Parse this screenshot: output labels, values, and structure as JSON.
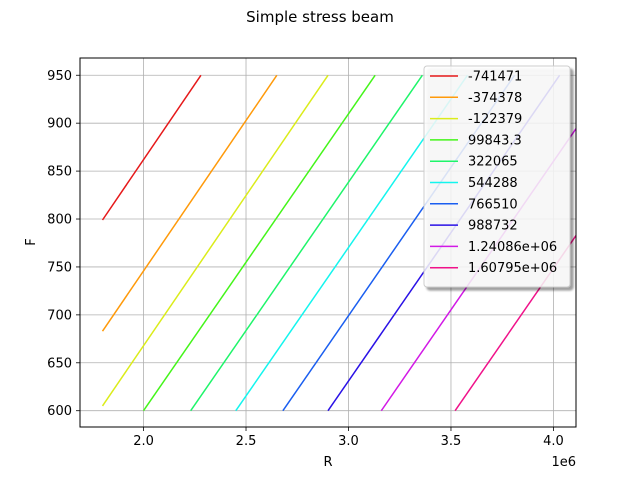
{
  "chart_data": {
    "type": "line",
    "title": "Simple stress beam",
    "xlabel": "R",
    "ylabel": "F",
    "x_offset_label": "1e6",
    "xlim": [
      1.69,
      4.11
    ],
    "ylim": [
      583,
      968
    ],
    "xticks": [
      2.0,
      2.5,
      3.0,
      3.5,
      4.0
    ],
    "xtick_labels": [
      "2.0",
      "2.5",
      "3.0",
      "3.5",
      "4.0"
    ],
    "yticks": [
      600,
      650,
      700,
      750,
      800,
      850,
      900,
      950
    ],
    "ytick_labels": [
      "600",
      "650",
      "700",
      "750",
      "800",
      "850",
      "900",
      "950"
    ],
    "grid": true,
    "legend_position": "top-right",
    "series": [
      {
        "name": "-741471",
        "color": "#e6191a",
        "points": [
          [
            1.8,
            799
          ],
          [
            2.28,
            950
          ]
        ]
      },
      {
        "name": "-374378",
        "color": "#ff9a0a",
        "points": [
          [
            1.8,
            683
          ],
          [
            2.65,
            950
          ]
        ]
      },
      {
        "name": "-122379",
        "color": "#dbec1a",
        "points": [
          [
            1.8,
            605
          ],
          [
            2.9,
            950
          ]
        ]
      },
      {
        "name": "99843.3",
        "color": "#44f51a",
        "points": [
          [
            2.0,
            600
          ],
          [
            3.13,
            950
          ]
        ]
      },
      {
        "name": "322065",
        "color": "#1ef56a",
        "points": [
          [
            2.23,
            600
          ],
          [
            3.36,
            950
          ]
        ]
      },
      {
        "name": "544288",
        "color": "#13f5ee",
        "points": [
          [
            2.45,
            600
          ],
          [
            3.58,
            950
          ]
        ]
      },
      {
        "name": "766510",
        "color": "#1a5ef0",
        "points": [
          [
            2.68,
            600
          ],
          [
            3.81,
            950
          ]
        ]
      },
      {
        "name": "988732",
        "color": "#2a11e6",
        "points": [
          [
            2.9,
            600
          ],
          [
            4.03,
            950
          ]
        ]
      },
      {
        "name": "1.24086e+06",
        "color": "#d219e6",
        "points": [
          [
            3.16,
            600
          ],
          [
            4.29,
            950
          ]
        ]
      },
      {
        "name": "1.60795e+06",
        "color": "#f0128a",
        "points": [
          [
            3.52,
            600
          ],
          [
            4.65,
            950
          ]
        ]
      }
    ]
  }
}
